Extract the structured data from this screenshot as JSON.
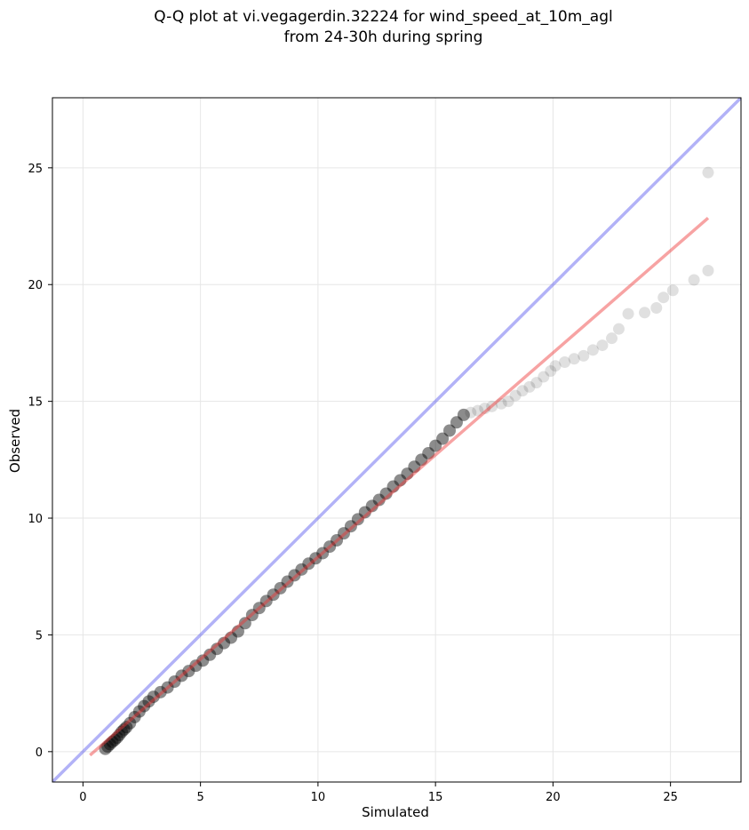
{
  "chart_data": {
    "type": "scatter",
    "title_lines": [
      "Q-Q plot at vi.vegagerdin.32224 for wind_speed_at_10m_agl",
      "from 24-30h during spring"
    ],
    "xlabel": "Simulated",
    "ylabel": "Observed",
    "xlim": [
      -1.3,
      28
    ],
    "ylim": [
      -1.3,
      28
    ],
    "xticks": [
      0,
      5,
      10,
      15,
      20,
      25
    ],
    "yticks": [
      0,
      5,
      10,
      15,
      20,
      25
    ],
    "xtick_labels": [
      "0",
      "5",
      "10",
      "15",
      "20",
      "25"
    ],
    "ytick_labels": [
      "0",
      "5",
      "10",
      "15",
      "20",
      "25"
    ],
    "grid": true,
    "series": [
      {
        "kind": "points",
        "color": "#000000",
        "opacity_dense": 0.45,
        "opacity_tail": 0.12,
        "points": [
          [
            0.95,
            0.12
          ],
          [
            1.05,
            0.22
          ],
          [
            1.15,
            0.32
          ],
          [
            1.25,
            0.42
          ],
          [
            1.35,
            0.5
          ],
          [
            1.45,
            0.6
          ],
          [
            1.55,
            0.72
          ],
          [
            1.65,
            0.85
          ],
          [
            1.75,
            0.95
          ],
          [
            1.85,
            1.05
          ],
          [
            2.0,
            1.22
          ],
          [
            2.2,
            1.48
          ],
          [
            2.4,
            1.72
          ],
          [
            2.6,
            1.95
          ],
          [
            2.8,
            2.15
          ],
          [
            3.0,
            2.35
          ],
          [
            3.3,
            2.55
          ],
          [
            3.6,
            2.75
          ],
          [
            3.9,
            3.0
          ],
          [
            4.2,
            3.25
          ],
          [
            4.5,
            3.45
          ],
          [
            4.8,
            3.68
          ],
          [
            5.1,
            3.9
          ],
          [
            5.4,
            4.15
          ],
          [
            5.7,
            4.4
          ],
          [
            6.0,
            4.65
          ],
          [
            6.3,
            4.88
          ],
          [
            6.6,
            5.15
          ],
          [
            6.9,
            5.5
          ],
          [
            7.2,
            5.85
          ],
          [
            7.5,
            6.15
          ],
          [
            7.8,
            6.45
          ],
          [
            8.1,
            6.72
          ],
          [
            8.4,
            7.0
          ],
          [
            8.7,
            7.28
          ],
          [
            9.0,
            7.55
          ],
          [
            9.3,
            7.8
          ],
          [
            9.6,
            8.05
          ],
          [
            9.9,
            8.28
          ],
          [
            10.2,
            8.5
          ],
          [
            10.5,
            8.78
          ],
          [
            10.8,
            9.05
          ],
          [
            11.1,
            9.35
          ],
          [
            11.4,
            9.65
          ],
          [
            11.7,
            9.95
          ],
          [
            12.0,
            10.25
          ],
          [
            12.3,
            10.52
          ],
          [
            12.6,
            10.78
          ],
          [
            12.9,
            11.05
          ],
          [
            13.2,
            11.35
          ],
          [
            13.5,
            11.62
          ],
          [
            13.8,
            11.9
          ],
          [
            14.1,
            12.2
          ],
          [
            14.4,
            12.5
          ],
          [
            14.7,
            12.78
          ],
          [
            15.0,
            13.1
          ],
          [
            15.3,
            13.4
          ],
          [
            15.6,
            13.75
          ],
          [
            15.9,
            14.1
          ],
          [
            16.2,
            14.42
          ],
          [
            16.5,
            14.52
          ],
          [
            16.8,
            14.6
          ],
          [
            17.1,
            14.7
          ],
          [
            17.4,
            14.78
          ],
          [
            17.8,
            14.9
          ],
          [
            18.1,
            15.0
          ],
          [
            18.4,
            15.25
          ],
          [
            18.7,
            15.45
          ],
          [
            19.0,
            15.62
          ],
          [
            19.3,
            15.8
          ],
          [
            19.6,
            16.05
          ],
          [
            19.9,
            16.3
          ],
          [
            20.1,
            16.52
          ],
          [
            20.5,
            16.68
          ],
          [
            20.9,
            16.82
          ],
          [
            21.3,
            16.95
          ],
          [
            21.7,
            17.2
          ],
          [
            22.1,
            17.4
          ],
          [
            22.5,
            17.7
          ],
          [
            22.8,
            18.1
          ],
          [
            23.2,
            18.75
          ],
          [
            23.9,
            18.8
          ],
          [
            24.4,
            19.0
          ],
          [
            24.7,
            19.45
          ],
          [
            25.1,
            19.75
          ],
          [
            26.0,
            20.2
          ],
          [
            26.6,
            20.6
          ],
          [
            26.6,
            24.8
          ]
        ]
      },
      {
        "kind": "line",
        "name": "",
        "color": "#ee3333",
        "x": [
          0.3,
          26.6
        ],
        "y": [
          -0.15,
          22.85
        ]
      },
      {
        "kind": "line",
        "name": "",
        "color": "#5555ee",
        "x": [
          -1.3,
          28
        ],
        "y": [
          -1.3,
          28
        ]
      }
    ]
  }
}
